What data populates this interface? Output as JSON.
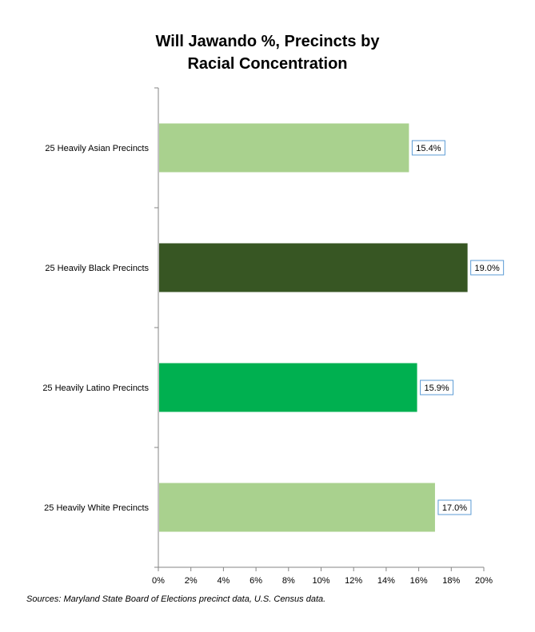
{
  "chart_data": {
    "type": "bar",
    "orientation": "horizontal",
    "title": "Will Jawando %, Precincts by Racial Concentration",
    "title_lines": [
      "Will Jawando %, Precincts by",
      "Racial Concentration"
    ],
    "categories": [
      "25 Heavily Asian Precincts",
      "25 Heavily Black Precincts",
      "25 Heavily Latino Precincts",
      "25 Heavily White Precincts"
    ],
    "values": [
      15.4,
      19.0,
      15.9,
      17.0
    ],
    "data_labels": [
      "15.4%",
      "19.0%",
      "15.9%",
      "17.0%"
    ],
    "bar_colors": [
      "#a9d18e",
      "#375623",
      "#00b050",
      "#a9d18e"
    ],
    "xlim": [
      0,
      20
    ],
    "x_ticks": [
      "0%",
      "2%",
      "4%",
      "6%",
      "8%",
      "10%",
      "12%",
      "14%",
      "16%",
      "18%",
      "20%"
    ],
    "grid": false,
    "legend": "none",
    "xlabel": "",
    "ylabel": ""
  },
  "source_note": "Sources: Maryland State Board of Elections precinct data, U.S. Census data."
}
